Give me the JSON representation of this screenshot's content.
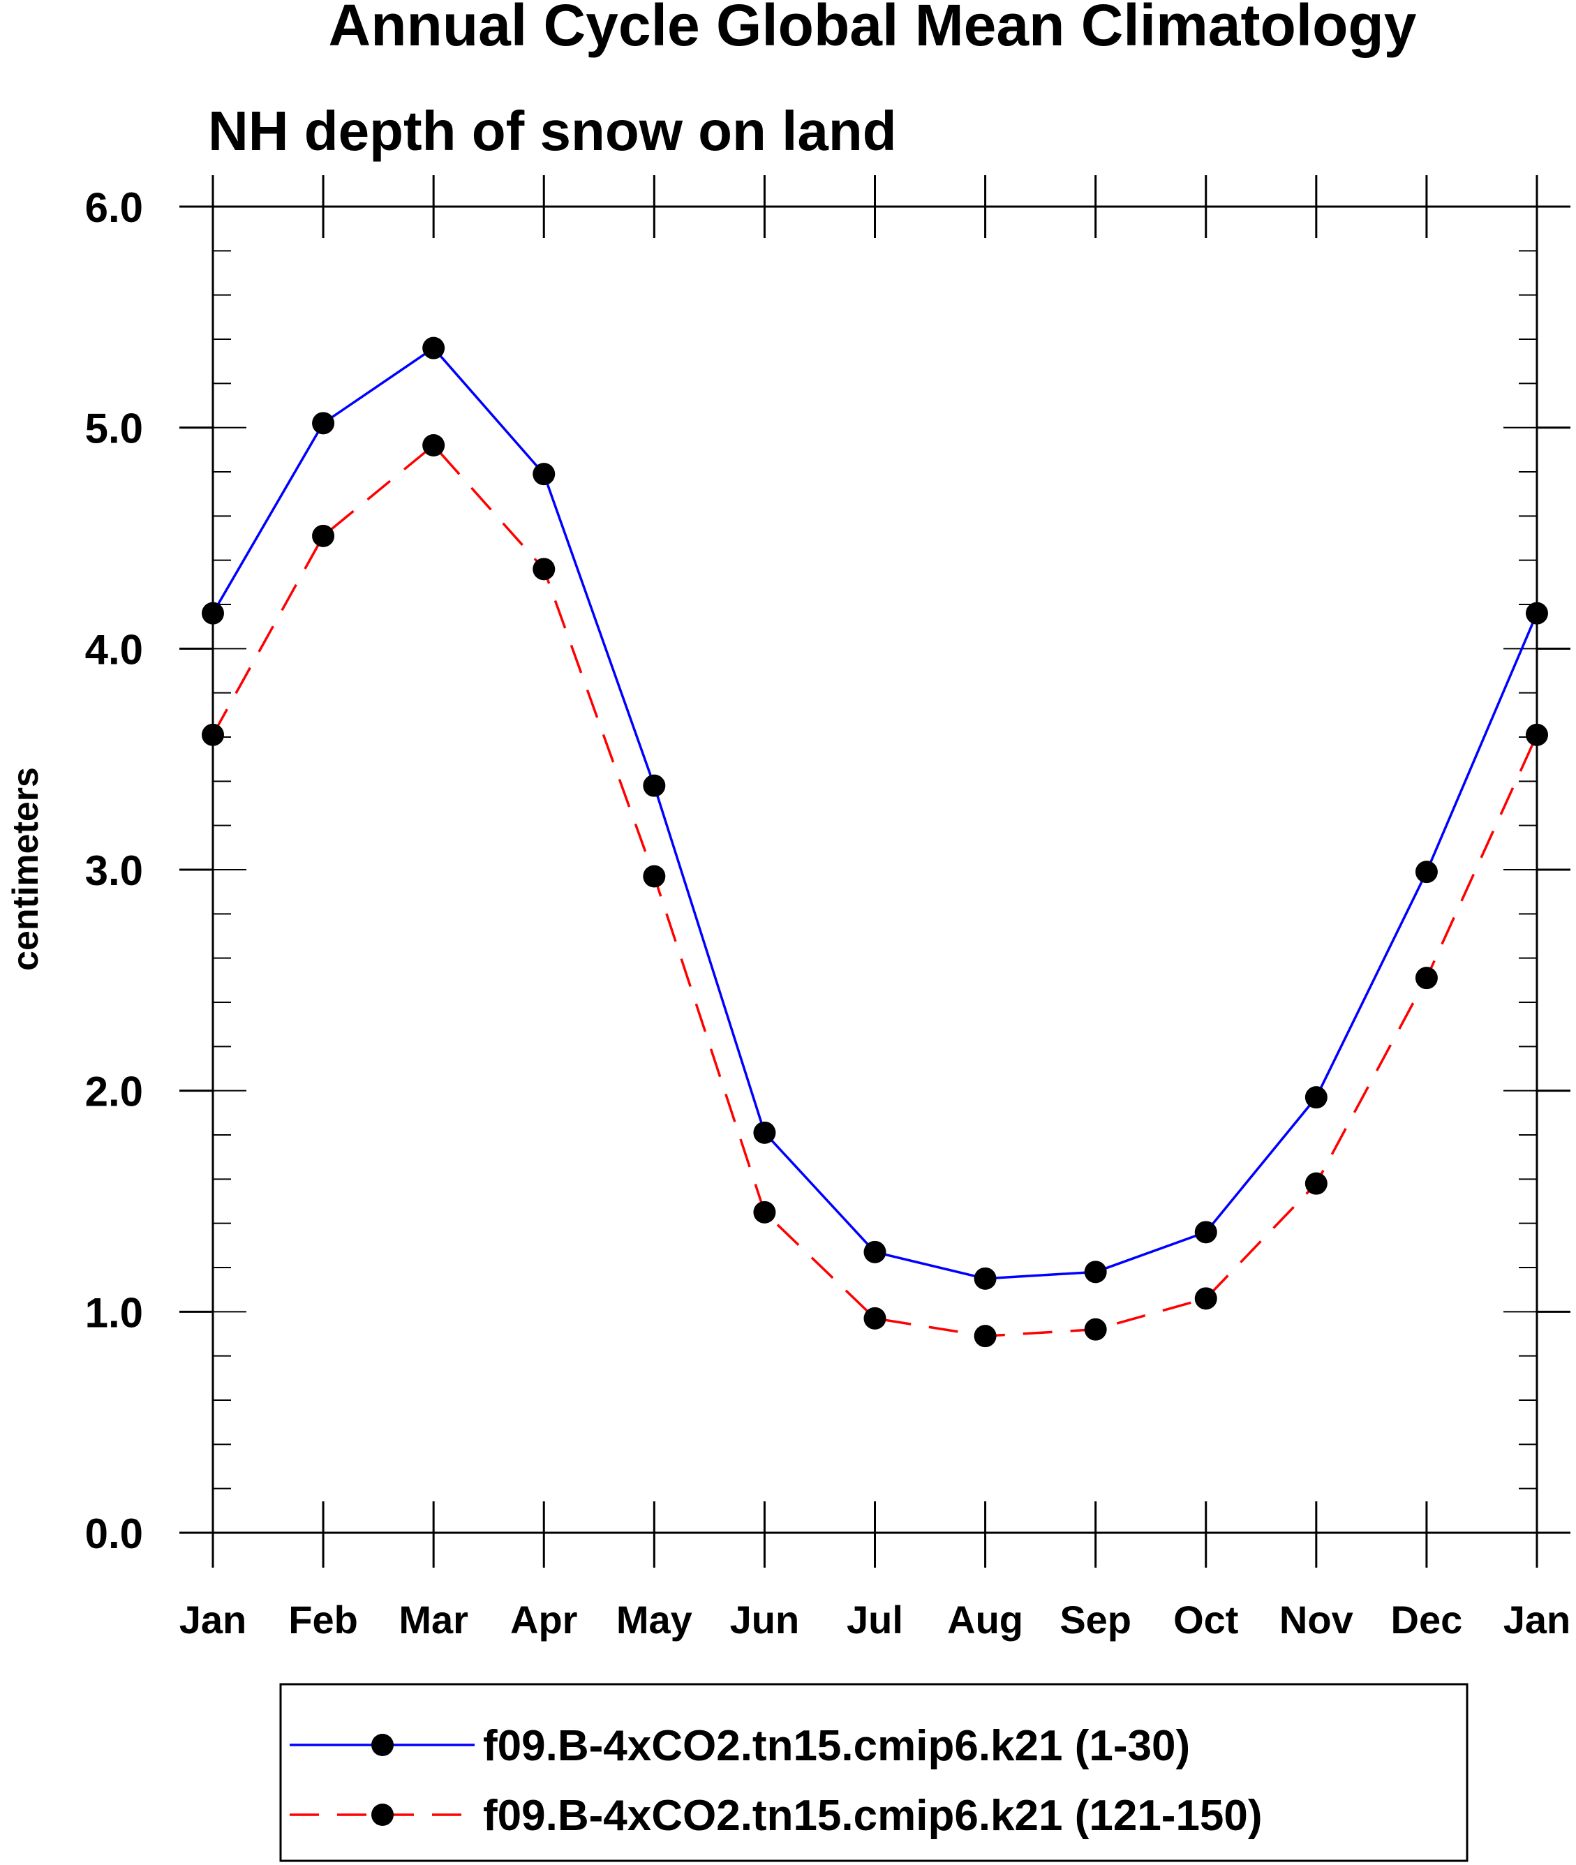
{
  "chart_data": {
    "type": "line",
    "title": "Annual Cycle Global Mean Climatology",
    "subtitle": "NH depth of snow on land",
    "xlabel": "",
    "ylabel": "centimeters",
    "categories": [
      "Jan",
      "Feb",
      "Mar",
      "Apr",
      "May",
      "Jun",
      "Jul",
      "Aug",
      "Sep",
      "Oct",
      "Nov",
      "Dec",
      "Jan"
    ],
    "ylim": [
      0.0,
      6.0
    ],
    "yticks": [
      "0.0",
      "1.0",
      "2.0",
      "3.0",
      "4.0",
      "5.0",
      "6.0"
    ],
    "grid": false,
    "legend_position": "bottom",
    "series": [
      {
        "name": "f09.B-4xCO2.tn15.cmip6.k21 (1-30)",
        "color": "#0000ff",
        "dash": "solid",
        "marker": "filled-circle",
        "values": [
          4.16,
          5.02,
          5.36,
          4.79,
          3.38,
          1.81,
          1.27,
          1.15,
          1.18,
          1.36,
          1.97,
          2.99,
          4.16
        ]
      },
      {
        "name": "f09.B-4xCO2.tn15.cmip6.k21 (121-150)",
        "color": "#ff0000",
        "dash": "dashed",
        "marker": "filled-circle",
        "values": [
          3.61,
          4.51,
          4.92,
          4.36,
          2.97,
          1.45,
          0.97,
          0.89,
          0.92,
          1.06,
          1.58,
          2.51,
          3.61
        ]
      }
    ]
  }
}
